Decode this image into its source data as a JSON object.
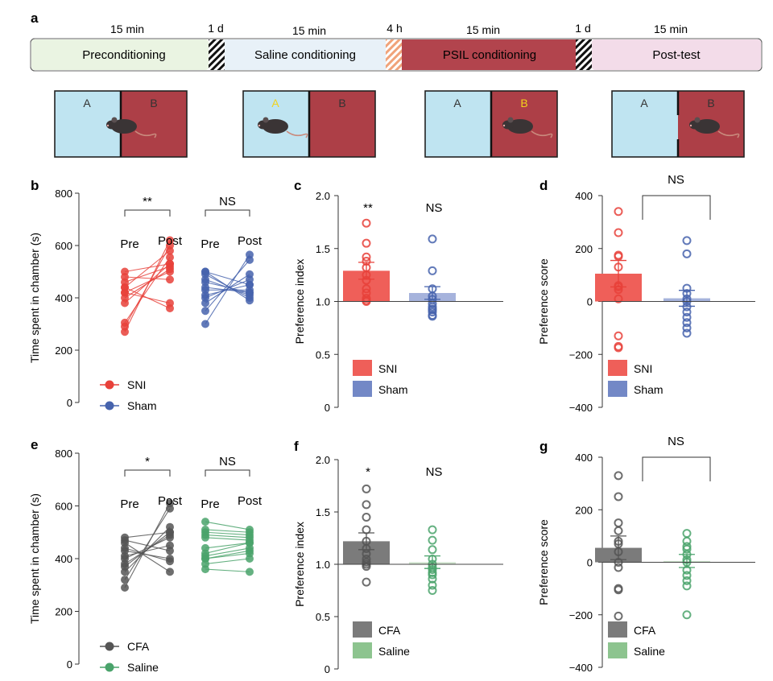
{
  "panel_labels": {
    "a": "a",
    "b": "b",
    "c": "c",
    "d": "d",
    "e": "e",
    "f": "f",
    "g": "g"
  },
  "timeline": {
    "durations": [
      "15 min",
      "1 d",
      "15 min",
      "4 h",
      "15 min",
      "1 d",
      "15 min"
    ],
    "phases": [
      {
        "label": "Preconditioning",
        "color": "#eaf4e2"
      },
      {
        "label": "Saline conditioning",
        "color": "#e8f1f8"
      },
      {
        "label": "PSIL conditioning",
        "color": "#b2444d"
      },
      {
        "label": "Post-test",
        "color": "#f3dce9"
      }
    ]
  },
  "chambers": [
    {
      "left": "A",
      "right": "B",
      "left_label_color": "#333333",
      "right_label_color": "#333333",
      "mouse": "center"
    },
    {
      "left": "A",
      "right": "B",
      "left_label_color": "#f2d21b",
      "right_label_color": "#333333",
      "mouse": "left"
    },
    {
      "left": "A",
      "right": "B",
      "left_label_color": "#333333",
      "right_label_color": "#f2d21b",
      "mouse": "right"
    },
    {
      "left": "A",
      "right": "B",
      "left_label_color": "#333333",
      "right_label_color": "#333333",
      "mouse": "right"
    }
  ],
  "colors": {
    "sni": "#e8413a",
    "sham": "#4663ad",
    "cfa": "#555555",
    "saline": "#4aa36b",
    "sni_bar": "#ef5f59",
    "sham_bar": "#a6b3dc",
    "cfa_bar": "#7b7b7b",
    "saline_bar": "#cfe3cd",
    "sni_legend": "#ef5f59",
    "sham_legend": "#7388c6",
    "cfa_legend": "#7b7b7b",
    "saline_legend": "#8dc48f",
    "chamber_a": "#bfe4f1",
    "chamber_b": "#ad3f47"
  },
  "chart_data": [
    {
      "panel": "b",
      "type": "line",
      "ylabel": "Time spent in chamber (s)",
      "ylim": [
        0,
        800
      ],
      "yticks": [
        "0",
        "200",
        "400",
        "600",
        "800"
      ],
      "pair_labels": [
        "Pre",
        "Post"
      ],
      "sig": [
        {
          "label": "**",
          "group": "SNI"
        },
        {
          "label": "NS",
          "group": "Sham"
        }
      ],
      "legend": [
        {
          "label": "SNI",
          "color_key": "sni"
        },
        {
          "label": "Sham",
          "color_key": "sham"
        }
      ],
      "series": [
        {
          "name": "SNI",
          "color_key": "sni",
          "pre": [
            270,
            290,
            305,
            380,
            400,
            420,
            440,
            460,
            480,
            500,
            420,
            440
          ],
          "post": [
            620,
            600,
            555,
            530,
            510,
            380,
            360,
            520,
            470,
            530,
            500,
            580
          ]
        },
        {
          "name": "Sham",
          "color_key": "sham",
          "pre": [
            300,
            350,
            380,
            400,
            410,
            430,
            440,
            470,
            490,
            500,
            500,
            460
          ],
          "post": [
            565,
            545,
            490,
            470,
            450,
            430,
            420,
            410,
            400,
            390,
            450,
            420
          ]
        }
      ]
    },
    {
      "panel": "c",
      "type": "bar",
      "ylabel": "Preference index",
      "ylim": [
        0,
        2.0
      ],
      "yticks": [
        "0",
        "0.5",
        "1.0",
        "1.5",
        "2.0"
      ],
      "baseline": 1.0,
      "legend": [
        {
          "label": "SNI",
          "color_key": "sni_legend"
        },
        {
          "label": "Sham",
          "color_key": "sham_legend"
        }
      ],
      "series": [
        {
          "name": "SNI",
          "color_key": "sni",
          "bar_key": "sni_bar",
          "mean": 1.29,
          "sem": 0.08,
          "sig": "**",
          "points": [
            1.74,
            1.55,
            1.42,
            1.38,
            1.32,
            1.25,
            1.2,
            1.12,
            1.08,
            1.03,
            1.01,
            1.0
          ]
        },
        {
          "name": "Sham",
          "color_key": "sham",
          "bar_key": "sham_bar",
          "mean": 1.08,
          "sem": 0.06,
          "sig": "NS",
          "points": [
            1.59,
            1.29,
            1.12,
            1.05,
            1.02,
            0.98,
            0.95,
            0.93,
            0.92,
            0.9,
            0.87,
            0.86
          ]
        }
      ]
    },
    {
      "panel": "d",
      "type": "bar",
      "ylabel": "Preference score",
      "ylim": [
        -400,
        400
      ],
      "yticks": [
        "−400",
        "−200",
        "0",
        "200",
        "400"
      ],
      "baseline": 0,
      "bracket": "NS",
      "legend": [
        {
          "label": "SNI",
          "color_key": "sni_legend"
        },
        {
          "label": "Sham",
          "color_key": "sham_legend"
        }
      ],
      "series": [
        {
          "name": "SNI",
          "color_key": "sni",
          "bar_key": "sni_bar",
          "mean": 105,
          "sem": 50,
          "points": [
            340,
            260,
            175,
            170,
            130,
            60,
            55,
            45,
            10,
            -130,
            -170,
            -175
          ]
        },
        {
          "name": "Sham",
          "color_key": "sham",
          "bar_key": "sham_bar",
          "mean": 12,
          "sem": 30,
          "points": [
            230,
            180,
            50,
            30,
            10,
            0,
            -20,
            -40,
            -60,
            -80,
            -100,
            -120
          ]
        }
      ]
    },
    {
      "panel": "e",
      "type": "line",
      "ylabel": "Time spent in chamber (s)",
      "ylim": [
        0,
        800
      ],
      "yticks": [
        "0",
        "200",
        "400",
        "600",
        "800"
      ],
      "pair_labels": [
        "Pre",
        "Post"
      ],
      "sig": [
        {
          "label": "*",
          "group": "CFA"
        },
        {
          "label": "NS",
          "group": "Saline"
        }
      ],
      "legend": [
        {
          "label": "CFA",
          "color_key": "cfa"
        },
        {
          "label": "Saline",
          "color_key": "saline"
        }
      ],
      "series": [
        {
          "name": "CFA",
          "color_key": "cfa",
          "pre": [
            290,
            320,
            350,
            370,
            380,
            400,
            410,
            430,
            440,
            460,
            470,
            480
          ],
          "post": [
            610,
            590,
            520,
            500,
            490,
            480,
            450,
            400,
            390,
            350,
            430,
            500
          ]
        },
        {
          "name": "Saline",
          "color_key": "saline",
          "pre": [
            360,
            380,
            400,
            410,
            420,
            480,
            490,
            500,
            510,
            540,
            440,
            400
          ],
          "post": [
            350,
            400,
            420,
            440,
            460,
            470,
            480,
            490,
            500,
            510,
            460,
            430
          ]
        }
      ]
    },
    {
      "panel": "f",
      "type": "bar",
      "ylabel": "Preference index",
      "ylim": [
        0,
        2.0
      ],
      "yticks": [
        "0",
        "0.5",
        "1.0",
        "1.5",
        "2.0"
      ],
      "baseline": 1.0,
      "legend": [
        {
          "label": "CFA",
          "color_key": "cfa_legend"
        },
        {
          "label": "Saline",
          "color_key": "saline_legend"
        }
      ],
      "series": [
        {
          "name": "CFA",
          "color_key": "cfa",
          "bar_key": "cfa_bar",
          "mean": 1.22,
          "sem": 0.08,
          "sig": "*",
          "points": [
            1.72,
            1.57,
            1.45,
            1.33,
            1.22,
            1.15,
            1.1,
            1.05,
            1.02,
            0.98,
            0.83,
            1.0
          ]
        },
        {
          "name": "Saline",
          "color_key": "saline",
          "bar_key": "saline_bar",
          "mean": 1.02,
          "sem": 0.06,
          "sig": "NS",
          "points": [
            1.33,
            1.23,
            1.14,
            1.05,
            1.0,
            0.97,
            0.95,
            0.92,
            0.9,
            0.86,
            0.8,
            0.75
          ]
        }
      ]
    },
    {
      "panel": "g",
      "type": "bar",
      "ylabel": "Preference score",
      "ylim": [
        -400,
        400
      ],
      "yticks": [
        "−400",
        "−200",
        "0",
        "200",
        "400"
      ],
      "baseline": 0,
      "bracket": "NS",
      "legend": [
        {
          "label": "CFA",
          "color_key": "cfa_legend"
        },
        {
          "label": "Saline",
          "color_key": "saline_legend"
        }
      ],
      "series": [
        {
          "name": "CFA",
          "color_key": "cfa",
          "bar_key": "cfa_bar",
          "mean": 55,
          "sem": 45,
          "points": [
            330,
            250,
            150,
            120,
            80,
            70,
            40,
            -20,
            -100,
            -105,
            -205,
            0
          ]
        },
        {
          "name": "Saline",
          "color_key": "saline",
          "bar_key": "saline_bar",
          "mean": 5,
          "sem": 25,
          "points": [
            110,
            80,
            60,
            50,
            30,
            10,
            0,
            -30,
            -50,
            -70,
            -90,
            -200
          ]
        }
      ]
    }
  ]
}
